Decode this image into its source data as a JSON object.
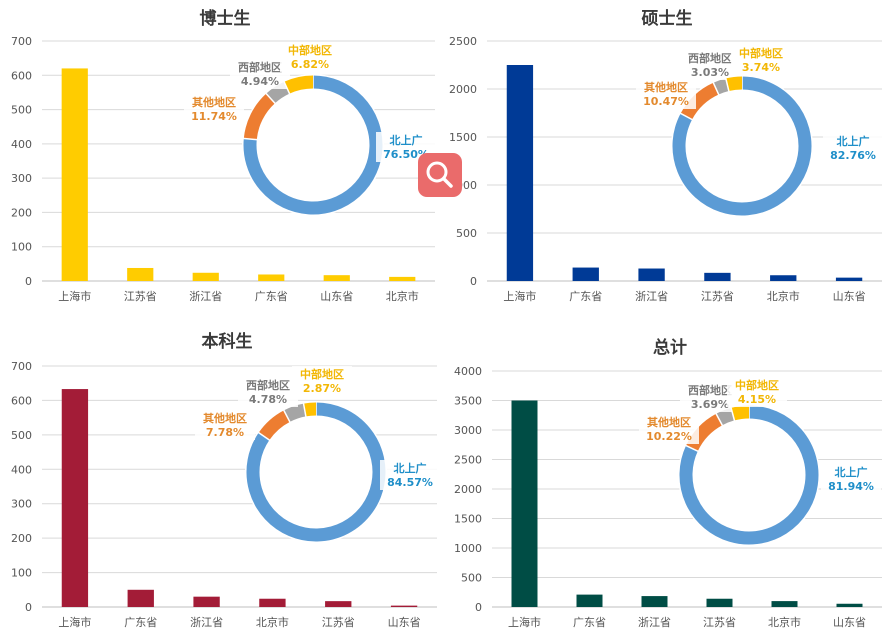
{
  "colors": {
    "donut_beishangguang": "#5b9bd5",
    "donut_other": "#ed7d31",
    "donut_west": "#a5a5a5",
    "donut_central": "#ffc000",
    "label_beishangguang": "#1f8fc9",
    "label_other": "#e38a2e",
    "label_west": "#7a7a7a",
    "label_central": "#f2b705",
    "grid": "#d9d9d9",
    "axis": "#bfbfbf",
    "zoom_button": "#ea6b6b"
  },
  "zoom_button": {
    "icon": "magnifier-icon"
  },
  "chart_data": [
    {
      "type": "bar",
      "title": "博士生",
      "categories": [
        "上海市",
        "江苏省",
        "浙江省",
        "广东省",
        "山东省",
        "北京市"
      ],
      "values": [
        620,
        38,
        24,
        19,
        17,
        12
      ],
      "ylim": [
        0,
        700
      ],
      "yticks": [
        0,
        100,
        200,
        300,
        400,
        500,
        600,
        700
      ],
      "bar_color": "#ffcc00",
      "grid": true,
      "inset": {
        "type": "pie",
        "donut": true,
        "slices": [
          {
            "label": "北上广",
            "pct": "76.50%",
            "value": 76.5,
            "color_key": "beishangguang"
          },
          {
            "label": "其他地区",
            "pct": "11.74%",
            "value": 11.74,
            "color_key": "other"
          },
          {
            "label": "西部地区",
            "pct": "4.94%",
            "value": 4.94,
            "color_key": "west"
          },
          {
            "label": "中部地区",
            "pct": "6.82%",
            "value": 6.82,
            "color_key": "central"
          }
        ]
      }
    },
    {
      "type": "bar",
      "title": "硕士生",
      "categories": [
        "上海市",
        "广东省",
        "浙江省",
        "江苏省",
        "北京市",
        "山东省"
      ],
      "values": [
        2250,
        140,
        130,
        85,
        60,
        35
      ],
      "ylim": [
        0,
        2500
      ],
      "yticks": [
        0,
        500,
        1000,
        1500,
        2000,
        2500
      ],
      "bar_color": "#003a96",
      "grid": true,
      "inset": {
        "type": "pie",
        "donut": true,
        "slices": [
          {
            "label": "北上广",
            "pct": "82.76%",
            "value": 82.76,
            "color_key": "beishangguang"
          },
          {
            "label": "其他地区",
            "pct": "10.47%",
            "value": 10.47,
            "color_key": "other"
          },
          {
            "label": "西部地区",
            "pct": "3.03%",
            "value": 3.03,
            "color_key": "west"
          },
          {
            "label": "中部地区",
            "pct": "3.74%",
            "value": 3.74,
            "color_key": "central"
          }
        ]
      }
    },
    {
      "type": "bar",
      "title": "本科生",
      "categories": [
        "上海市",
        "广东省",
        "浙江省",
        "北京市",
        "江苏省",
        "山东省"
      ],
      "values": [
        633,
        50,
        30,
        24,
        17,
        4
      ],
      "ylim": [
        0,
        700
      ],
      "yticks": [
        0,
        100,
        200,
        300,
        400,
        500,
        600,
        700
      ],
      "bar_color": "#a31c37",
      "grid": true,
      "inset": {
        "type": "pie",
        "donut": true,
        "slices": [
          {
            "label": "北上广",
            "pct": "84.57%",
            "value": 84.57,
            "color_key": "beishangguang"
          },
          {
            "label": "其他地区",
            "pct": "7.78%",
            "value": 7.78,
            "color_key": "other"
          },
          {
            "label": "西部地区",
            "pct": "4.78%",
            "value": 4.78,
            "color_key": "west"
          },
          {
            "label": "中部地区",
            "pct": "2.87%",
            "value": 2.87,
            "color_key": "central"
          }
        ]
      }
    },
    {
      "type": "bar",
      "title": "总计",
      "categories": [
        "上海市",
        "广东省",
        "浙江省",
        "江苏省",
        "北京市",
        "山东省"
      ],
      "values": [
        3500,
        210,
        185,
        140,
        100,
        55
      ],
      "ylim": [
        0,
        4000
      ],
      "yticks": [
        0,
        500,
        1000,
        1500,
        2000,
        2500,
        3000,
        3500,
        4000
      ],
      "bar_color": "#004d45",
      "grid": true,
      "inset": {
        "type": "pie",
        "donut": true,
        "slices": [
          {
            "label": "北上广",
            "pct": "81.94%",
            "value": 81.94,
            "color_key": "beishangguang"
          },
          {
            "label": "其他地区",
            "pct": "10.22%",
            "value": 10.22,
            "color_key": "other"
          },
          {
            "label": "西部地区",
            "pct": "3.69%",
            "value": 3.69,
            "color_key": "west"
          },
          {
            "label": "中部地区",
            "pct": "4.15%",
            "value": 4.15,
            "color_key": "central"
          }
        ]
      }
    }
  ]
}
